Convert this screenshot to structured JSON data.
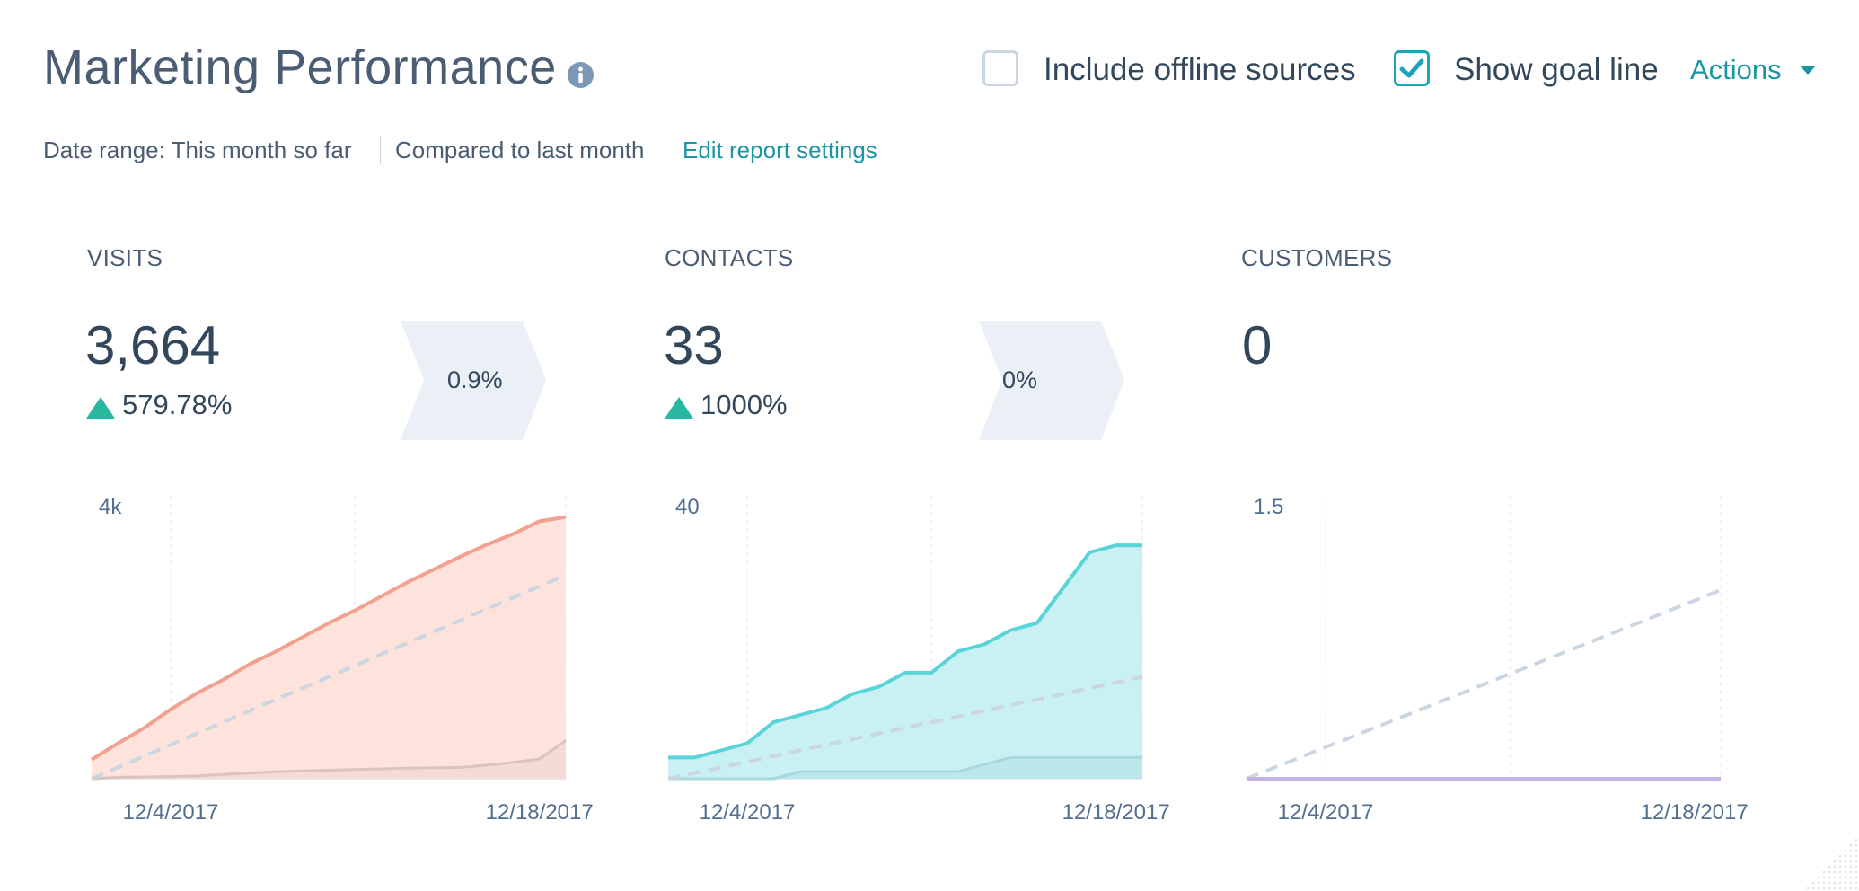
{
  "header": {
    "title": "Marketing Performance",
    "info_icon": "info-icon",
    "include_offline_label": "Include offline sources",
    "include_offline_checked": false,
    "show_goal_label": "Show goal line",
    "show_goal_checked": true,
    "actions_label": "Actions"
  },
  "subheader": {
    "date_range": "Date range: This month so far",
    "compared": "Compared to last month",
    "edit_link": "Edit report settings"
  },
  "metrics": [
    {
      "label": "VISITS",
      "value": "3,664",
      "delta": "579.78%"
    },
    {
      "label": "CONTACTS",
      "value": "33",
      "delta": "1000%"
    },
    {
      "label": "CUSTOMERS",
      "value": "0",
      "delta": ""
    }
  ],
  "conversion_rates": [
    "0.9%",
    "0%"
  ],
  "colors": {
    "visits_line": "#f2a08f",
    "visits_fill": "#fde3dc",
    "contacts_line": "#5ad3d9",
    "contacts_fill": "#c9f0f2",
    "customers_line": "#c3b3e0",
    "goal_line": "#cbd6e2",
    "accent": "#1a95a3",
    "up": "#28b79f"
  },
  "chart_data": [
    {
      "type": "area",
      "name": "visits",
      "x": [
        "12/1/2017",
        "12/2/2017",
        "12/3/2017",
        "12/4/2017",
        "12/5/2017",
        "12/6/2017",
        "12/7/2017",
        "12/8/2017",
        "12/9/2017",
        "12/10/2017",
        "12/11/2017",
        "12/12/2017",
        "12/13/2017",
        "12/14/2017",
        "12/15/2017",
        "12/16/2017",
        "12/17/2017",
        "12/18/2017",
        "12/19/2017"
      ],
      "x_ticks": [
        "12/4/2017",
        "12/18/2017"
      ],
      "ymax_label": "4k",
      "ylim": [
        0,
        4000
      ],
      "series": [
        {
          "role": "current",
          "values": [
            270,
            500,
            720,
            980,
            1210,
            1400,
            1620,
            1800,
            2000,
            2200,
            2380,
            2580,
            2780,
            2960,
            3140,
            3310,
            3460,
            3640,
            3700
          ]
        },
        {
          "role": "previous",
          "values": [
            0,
            20,
            25,
            30,
            40,
            60,
            80,
            100,
            110,
            120,
            130,
            140,
            150,
            155,
            160,
            190,
            230,
            280,
            540
          ]
        },
        {
          "role": "goal",
          "values": [
            0,
            160,
            320,
            480,
            640,
            800,
            960,
            1120,
            1280,
            1440,
            1600,
            1760,
            1920,
            2080,
            2240,
            2400,
            2560,
            2720,
            2880
          ]
        }
      ]
    },
    {
      "type": "area",
      "name": "contacts",
      "x": [
        "12/1/2017",
        "12/2/2017",
        "12/3/2017",
        "12/4/2017",
        "12/5/2017",
        "12/6/2017",
        "12/7/2017",
        "12/8/2017",
        "12/9/2017",
        "12/10/2017",
        "12/11/2017",
        "12/12/2017",
        "12/13/2017",
        "12/14/2017",
        "12/15/2017",
        "12/16/2017",
        "12/17/2017",
        "12/18/2017",
        "12/19/2017"
      ],
      "x_ticks": [
        "12/4/2017",
        "12/18/2017"
      ],
      "ymax_label": "40",
      "ylim": [
        0,
        40
      ],
      "series": [
        {
          "role": "current",
          "values": [
            3,
            3,
            4,
            5,
            8,
            9,
            10,
            12,
            13,
            15,
            15,
            18,
            19,
            21,
            22,
            27,
            32,
            33,
            33
          ]
        },
        {
          "role": "previous",
          "values": [
            0,
            0,
            0,
            0,
            0,
            1,
            1,
            1,
            1,
            1,
            1,
            1,
            2,
            3,
            3,
            3,
            3,
            3,
            3
          ]
        },
        {
          "role": "goal",
          "values": [
            0,
            0.8,
            1.6,
            2.4,
            3.2,
            4,
            4.8,
            5.6,
            6.4,
            7.2,
            8,
            8.8,
            9.6,
            10.4,
            11.2,
            12,
            12.8,
            13.6,
            14.4
          ]
        }
      ]
    },
    {
      "type": "line",
      "name": "customers",
      "x": [
        "12/1/2017",
        "12/2/2017",
        "12/3/2017",
        "12/4/2017",
        "12/5/2017",
        "12/6/2017",
        "12/7/2017",
        "12/8/2017",
        "12/9/2017",
        "12/10/2017",
        "12/11/2017",
        "12/12/2017",
        "12/13/2017",
        "12/14/2017",
        "12/15/2017",
        "12/16/2017",
        "12/17/2017",
        "12/18/2017",
        "12/19/2017"
      ],
      "x_ticks": [
        "12/4/2017",
        "12/18/2017"
      ],
      "ymax_label": "1.5",
      "ylim": [
        0,
        1.5
      ],
      "series": [
        {
          "role": "current",
          "values": [
            0,
            0,
            0,
            0,
            0,
            0,
            0,
            0,
            0,
            0,
            0,
            0,
            0,
            0,
            0,
            0,
            0,
            0,
            0
          ]
        },
        {
          "role": "goal",
          "values": [
            0,
            0.056,
            0.111,
            0.167,
            0.222,
            0.278,
            0.333,
            0.389,
            0.444,
            0.5,
            0.556,
            0.611,
            0.667,
            0.722,
            0.778,
            0.833,
            0.889,
            0.944,
            1.0
          ]
        }
      ]
    }
  ]
}
